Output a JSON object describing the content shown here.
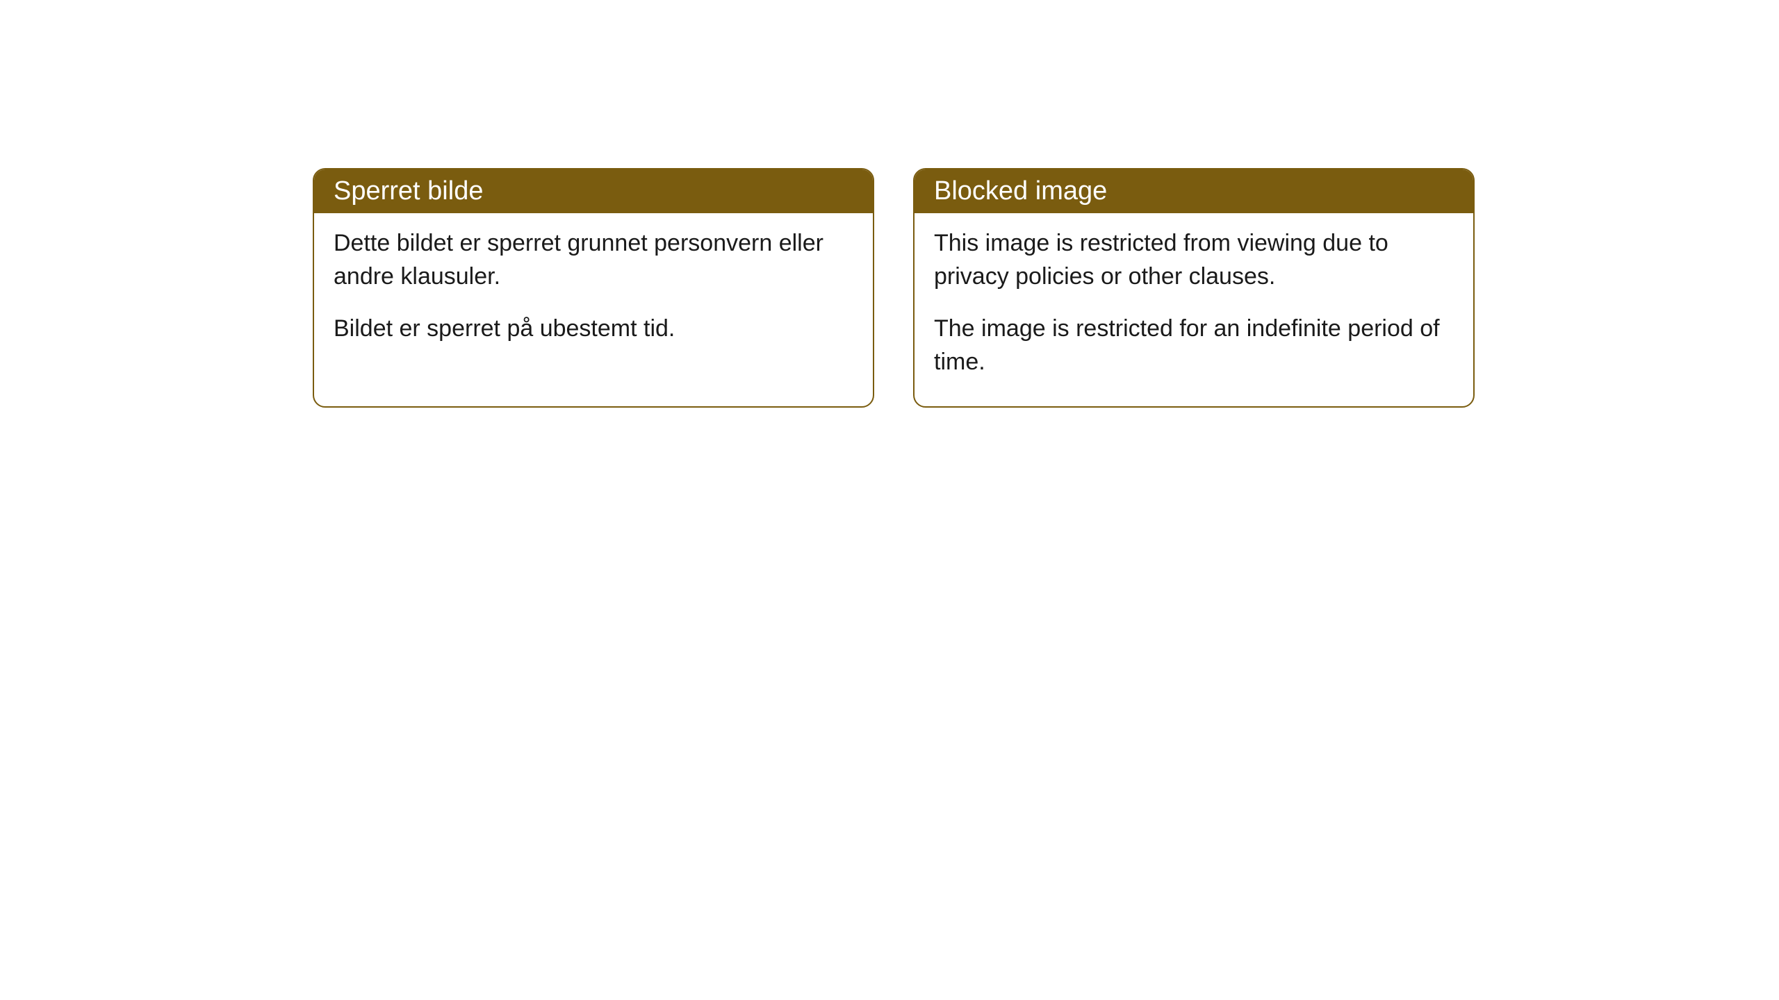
{
  "cards": [
    {
      "header": "Sperret bilde",
      "paragraph1": "Dette bildet er sperret grunnet personvern eller andre klausuler.",
      "paragraph2": "Bildet er sperret på ubestemt tid."
    },
    {
      "header": "Blocked image",
      "paragraph1": "This image is restricted from viewing due to privacy policies or other clauses.",
      "paragraph2": "The image is restricted for an indefinite period of time."
    }
  ],
  "style": {
    "header_bg_color": "#7a5c0f",
    "header_text_color": "#ffffff",
    "border_color": "#7a5c0f",
    "body_bg_color": "#ffffff",
    "body_text_color": "#1a1a1a",
    "border_radius": 18,
    "header_fontsize": 38,
    "body_fontsize": 34
  }
}
